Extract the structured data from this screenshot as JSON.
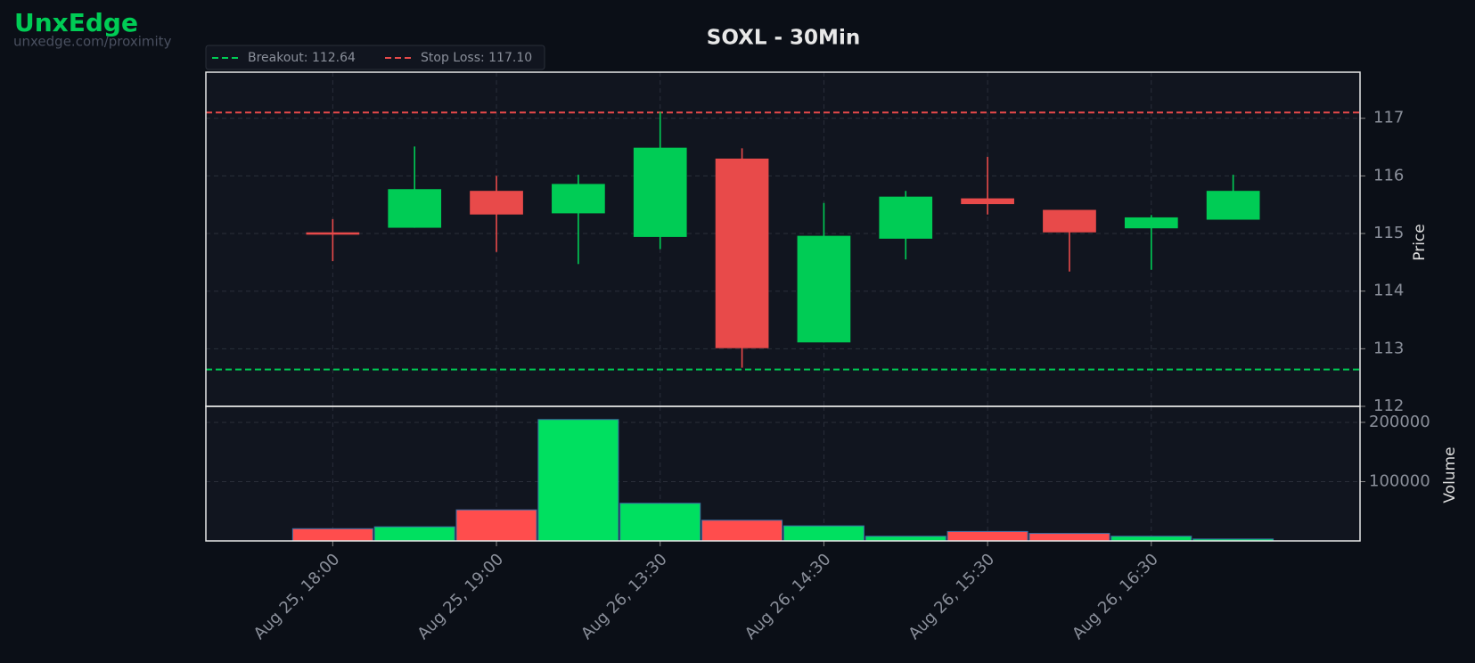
{
  "brand": {
    "name": "UnxEdge",
    "url": "unxedge.com/proximity"
  },
  "chart_data": {
    "type": "candlestick",
    "title": "SOXL - 30Min",
    "categories": [
      "Aug 25, 18:00",
      null,
      "Aug 25, 19:00",
      null,
      "Aug 26, 13:30",
      null,
      "Aug 26, 14:30",
      null,
      "Aug 26, 15:30",
      null,
      "Aug 26, 16:30",
      null
    ],
    "open": [
      115.02,
      115.1,
      115.74,
      115.35,
      114.94,
      116.3,
      113.11,
      114.91,
      115.61,
      115.41,
      115.09,
      115.24
    ],
    "high": [
      115.25,
      116.51,
      116.0,
      116.02,
      117.11,
      116.48,
      115.53,
      115.74,
      116.33,
      115.41,
      115.32,
      116.02
    ],
    "low": [
      114.52,
      115.1,
      114.68,
      114.47,
      114.73,
      112.67,
      113.11,
      114.55,
      115.33,
      114.34,
      114.37,
      115.24
    ],
    "close": [
      114.98,
      115.77,
      115.33,
      115.86,
      116.49,
      113.01,
      114.96,
      115.64,
      115.51,
      115.02,
      115.28,
      115.74
    ],
    "up_color": "#00cc55",
    "down_color": "#e84a4a",
    "ylabel": "Price",
    "ylim": [
      112,
      117.8
    ],
    "yticks": [
      112,
      113,
      114,
      115,
      116,
      117
    ],
    "grid": true,
    "hlines": [
      {
        "name": "Breakout: 112.64",
        "value": 112.64,
        "color": "#00cc55"
      },
      {
        "name": "Stop Loss: 117.10",
        "value": 117.1,
        "color": "#e84a4a"
      }
    ],
    "volume": {
      "label": "Volume",
      "values": [
        20600,
        23800,
        52400,
        204800,
        63500,
        34900,
        25400,
        7900,
        15900,
        12700,
        7900,
        3200
      ],
      "ylim": [
        0,
        227000
      ],
      "yticks": [
        100000,
        200000
      ],
      "up_color": "#00e060",
      "down_color": "#ff4d4d"
    }
  }
}
